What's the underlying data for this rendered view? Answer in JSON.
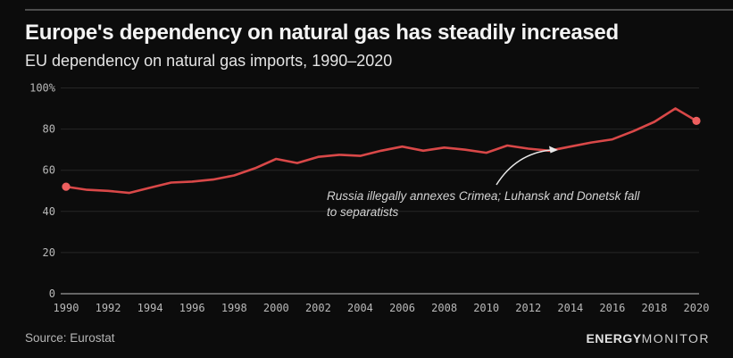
{
  "header": {
    "title": "Europe's dependency on natural gas has steadily increased",
    "subtitle": "EU dependency on natural gas imports, 1990–2020"
  },
  "annotation": {
    "line1": "Russia illegally annexes Crimea; Luhansk and Donetsk fall",
    "line2": "to separatists"
  },
  "footer": {
    "source": "Source: Eurostat",
    "logo_bold": "ENERGY",
    "logo_light": "MONITOR"
  },
  "colors": {
    "background": "#0c0c0c",
    "line": "#d94848",
    "marker": "#ee5f5f",
    "grid": "#262626",
    "zero_axis": "#666666",
    "tick_label": "#b9b9b9",
    "arrow": "#e8e8e8"
  },
  "chart_data": {
    "type": "line",
    "title": "Europe's dependency on natural gas has steadily increased",
    "subtitle": "EU dependency on natural gas imports, 1990–2020",
    "xlabel": "",
    "ylabel": "",
    "x": [
      1990,
      1991,
      1992,
      1993,
      1994,
      1995,
      1996,
      1997,
      1998,
      1999,
      2000,
      2001,
      2002,
      2003,
      2004,
      2005,
      2006,
      2007,
      2008,
      2009,
      2010,
      2011,
      2012,
      2013,
      2014,
      2015,
      2016,
      2017,
      2018,
      2019,
      2020
    ],
    "values": [
      52,
      50.5,
      50,
      49,
      51.5,
      54,
      54.5,
      55.5,
      57.5,
      61,
      65.5,
      63.5,
      66.5,
      67.5,
      67,
      69.5,
      71.5,
      69.5,
      71,
      70,
      68.5,
      72,
      70.5,
      69.5,
      71.5,
      73.5,
      75,
      79,
      83.5,
      90,
      84
    ],
    "ylim": [
      0,
      100
    ],
    "yticks": [
      0,
      20,
      40,
      60,
      80,
      100
    ],
    "ytick_labels": [
      "0",
      "20",
      "40",
      "60",
      "80",
      "100%"
    ],
    "xticks": [
      1990,
      1992,
      1994,
      1996,
      1998,
      2000,
      2002,
      2004,
      2006,
      2008,
      2010,
      2012,
      2014,
      2016,
      2018,
      2020
    ],
    "grid": "horizontal",
    "legend": "none",
    "endpoint_markers": [
      1990,
      2020
    ],
    "annotation": {
      "text": "Russia illegally annexes Crimea; Luhansk and Donetsk fall to separatists",
      "target_year": 2013.5
    }
  }
}
